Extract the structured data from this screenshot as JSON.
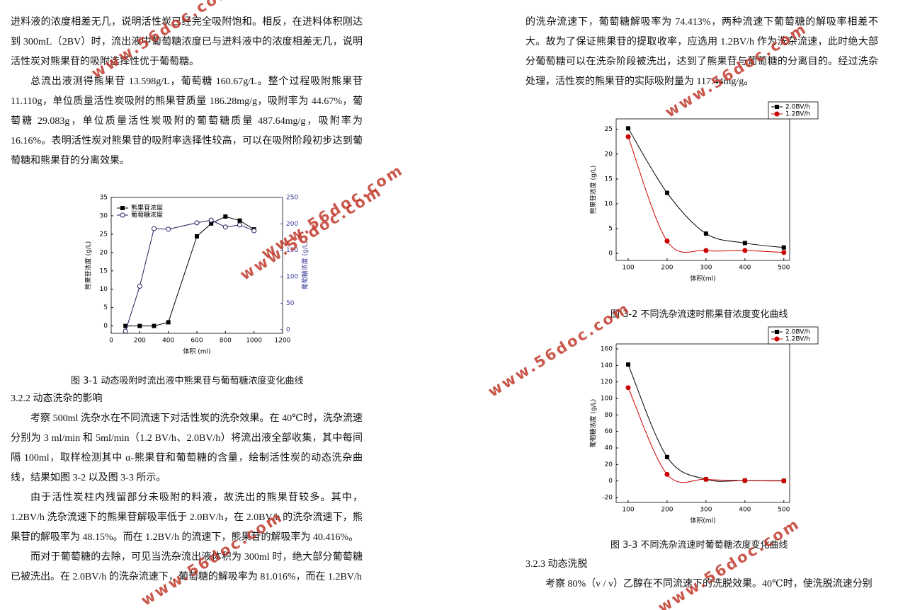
{
  "left_column": {
    "paragraphs": [
      "进料液的浓度相差无几，说明活性炭已经完全吸附饱和。相反，在进料体积刚达到 300mL（2BV）时，流出液中葡萄糖浓度已与进料液中的浓度相差无几，说明活性炭对熊果苷的吸附选择性优于葡萄糖。",
      "总流出液测得熊果苷 13.598g/L，葡萄糖 160.67g/L。整个过程吸附熊果苷 11.110g，单位质量活性炭吸附的熊果苷质量 186.28mg/g，吸附率为 44.67%，葡萄糖 29.083g，单位质量活性炭吸附的葡萄糖质量 487.64mg/g，吸附率为 16.16%。表明活性炭对熊果苷的吸附率选择性较高，可以在吸附阶段初步达到葡萄糖和熊果苷的分离效果。"
    ],
    "figure_caption": "图 3-1  动态吸附时流出液中熊果苷与葡萄糖浓度变化曲线",
    "heading": "3.2.2 动态洗杂的影响",
    "paragraphs_after": [
      "考察 500ml 洗杂水在不同流速下对活性炭的洗杂效果。在 40℃时，洗杂流速分别为 3 ml/min 和 5ml/min（1.2 BV/h、2.0BV/h）将流出液全部收集，其中每间隔 100ml，取样检测其中 α-熊果苷和葡萄糖的含量，绘制活性炭的动态洗杂曲线，结果如图 3-2 以及图 3-3 所示。",
      "由于活性炭柱内残留部分未吸附的料液，故洗出的熊果苷较多。其中，1.2BV/h 洗杂流速下的熊果苷解吸率低于 2.0BV/h，在 2.0BV/h 的洗杂流速下，熊果苷的解吸率为 48.15%。而在 1.2BV/h 的流速下，熊果苷的解吸率为 40.416%。",
      "而对于葡萄糖的去除，可见当洗杂流出液体积为 300ml 时，绝大部分葡萄糖已被洗出。在 2.0BV/h 的洗杂流速下，葡萄糖的解吸率为 81.016%，而在 1.2BV/h"
    ]
  },
  "right_column": {
    "paragraph": "的洗杂流速下，葡萄糖解吸率为 74.413%，两种流速下葡萄糖的解吸率相差不大。故为了保证熊果苷的提取收率，应选用 1.2BV/h 作为洗杂流速，此时绝大部分葡萄糖可以在洗杂阶段被洗出，达到了熊果苷与葡萄糖的分离目的。经过洗杂处理，活性炭的熊果苷的实际吸附量为 117.44mg/g。",
    "figure_caption_2": "图 3-2  不同洗杂流速时熊果苷浓度变化曲线",
    "figure_caption_3": "图 3-3  不同洗杂流速时葡萄糖浓度变化曲线",
    "heading": "3.2.3 动态洗脱",
    "paragraph_after": "考察 80%（v / v）乙醇在不同流速下的洗脱效果。40℃时，使洗脱流速分别"
  },
  "watermark": "www.56doc.com",
  "chart_data": [
    {
      "type": "line",
      "smooth": false,
      "legend": "top-left",
      "x_label": "体积 (ml)",
      "y_label": "熊果苷浓度 (g/L)",
      "y2_label": "葡萄糖浓度 (g/L)",
      "x": [
        100,
        200,
        300,
        400,
        600,
        700,
        800,
        900,
        1000
      ],
      "xlim": [
        0,
        1200
      ],
      "xticks": [
        0,
        200,
        400,
        600,
        800,
        1000,
        1200
      ],
      "ylim": [
        -2,
        35
      ],
      "yticks": [
        0,
        5,
        10,
        15,
        20,
        25,
        30,
        35
      ],
      "y2lim": [
        -7,
        250
      ],
      "y2ticks": [
        0,
        50,
        100,
        150,
        200,
        250
      ],
      "y2color": "#3a3a9a",
      "series": [
        {
          "name": "熊果苷浓度",
          "color": "#000000",
          "marker": "square",
          "values": [
            0,
            0,
            0,
            1,
            24.4,
            27.9,
            29.8,
            28.7,
            26.3
          ]
        },
        {
          "name": "葡萄糖浓度",
          "color": "#1f1f5e",
          "marker": "open-circle",
          "axis": "y2",
          "values": [
            -3,
            82,
            191,
            190,
            202,
            207,
            194,
            198,
            187
          ]
        }
      ]
    },
    {
      "type": "line",
      "smooth": true,
      "legend": "top-right-outside",
      "x_label": "体积(ml)",
      "y_label": "熊果苷浓度 (g/L)",
      "x": [
        100,
        200,
        300,
        400,
        500
      ],
      "xlim": [
        69,
        515
      ],
      "xticks": [
        100,
        200,
        300,
        400,
        500
      ],
      "ylim": [
        -1.4,
        27.1
      ],
      "yticks": [
        0,
        5,
        10,
        15,
        20,
        25
      ],
      "series": [
        {
          "name": "2.0BV/h",
          "color": "#000000",
          "marker": "square",
          "values": [
            25.2,
            12.2,
            4.0,
            2.1,
            1.2
          ]
        },
        {
          "name": "1.2BV/h",
          "color": "#cc0000",
          "marker": "circle",
          "values": [
            23.5,
            2.5,
            0.6,
            0.6,
            0.2
          ]
        }
      ]
    },
    {
      "type": "line",
      "smooth": true,
      "legend": "top-right-outside",
      "x_label": "体积(ml)",
      "y_label": "葡萄糖浓度 (g/L)",
      "x": [
        100,
        200,
        300,
        400,
        500
      ],
      "xlim": [
        69,
        515
      ],
      "xticks": [
        100,
        200,
        300,
        400,
        500
      ],
      "ylim": [
        -26,
        166
      ],
      "yticks": [
        -20,
        0,
        20,
        40,
        60,
        80,
        100,
        120,
        140,
        160
      ],
      "series": [
        {
          "name": "2.0BV/h",
          "color": "#000000",
          "marker": "square",
          "values": [
            141,
            29,
            2,
            0.5,
            0.3
          ]
        },
        {
          "name": "1.2BV/h",
          "color": "#cc0000",
          "marker": "circle",
          "values": [
            113,
            8,
            2,
            0.5,
            0
          ]
        }
      ]
    }
  ]
}
